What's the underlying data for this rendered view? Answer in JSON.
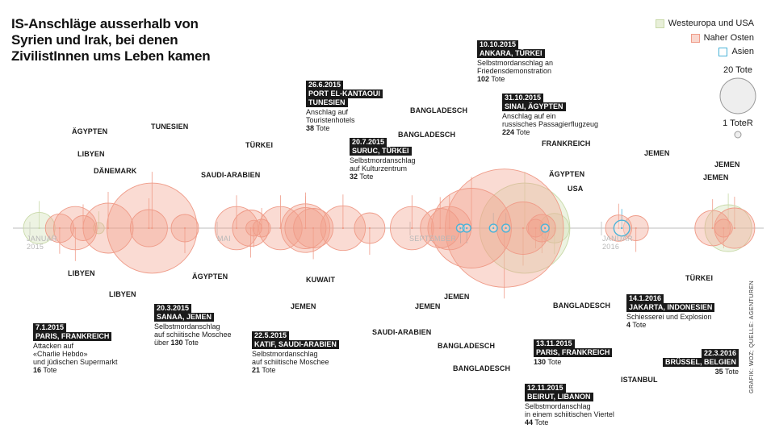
{
  "title_lines": [
    "IS-Anschläge ausserhalb von",
    "Syrien und Irak, bei denen",
    "ZivilistInnen ums Leben kamen"
  ],
  "legend": [
    {
      "label": "Westeuropa und USA",
      "color": "#c8d9a8",
      "fill": "#e8efd9"
    },
    {
      "label": "Naher Osten",
      "color": "#ef9b88",
      "fill": "#f9d7ce"
    },
    {
      "label": "Asien",
      "color": "#4ab3d8",
      "fill": "#ffffff"
    }
  ],
  "size_legend": {
    "big": "20 Tote",
    "small": "1 ToteR"
  },
  "axis_labels": {
    "jan2015": "JANUAR",
    "y2015": "2015",
    "mai": "MAI",
    "sep": "SEPTEMBER",
    "jan2016": "JANUAR",
    "y2016": "2016"
  },
  "countries": {
    "aegypten1": "ÄGYPTEN",
    "libyen1": "LIBYEN",
    "daenemark": "DÄNEMARK",
    "tunesien1": "TUNESIEN",
    "tuerkei1": "TÜRKEI",
    "saudi1": "SAUDI-ARABIEN",
    "bangladesch1": "BANGLADESCH",
    "bangladesch2": "BANGLADESCH",
    "frankreich1": "FRANKREICH",
    "aegypten2": "ÄGYPTEN",
    "usa": "USA",
    "jemen1": "JEMEN",
    "jemen2": "JEMEN",
    "jemen3": "JEMEN",
    "libyen2": "LIBYEN",
    "libyen3": "LIBYEN",
    "aegypten3": "ÄGYPTEN",
    "kuwait": "KUWAIT",
    "jemen4": "JEMEN",
    "saudi2": "SAUDI-ARABIEN",
    "jemen5": "JEMEN",
    "jemen6": "JEMEN",
    "bangladesch3": "BANGLADESCH",
    "bangladesch4": "BANGLADESCH",
    "bangladesch5": "BANGLADESCH",
    "istanbul": "ISTANBUL",
    "tuerkei2": "TÜRKEI"
  },
  "annotations": {
    "paris1": {
      "date": "7.1.2015",
      "place": "PARIS, FRANKREICH",
      "desc": [
        "Attacken auf",
        "«Charlie Hebdo»",
        "und jüdischen Supermarkt"
      ],
      "deaths": "16",
      "unit": "Tote"
    },
    "sanaa": {
      "date": "20.3.2015",
      "place": "SANAA, JEMEN",
      "desc": [
        "Selbstmordanschlag",
        "auf schiitische Moschee",
        "über"
      ],
      "deaths": "130",
      "unit": "Tote"
    },
    "katif": {
      "date": "22.5.2015",
      "place": "KATIF, SAUDI-ARABIEN",
      "desc": [
        "Selbstmordanschlag",
        "auf schiitische Moschee"
      ],
      "deaths": "21",
      "unit": "Tote"
    },
    "sousse": {
      "date": "26.6.2015",
      "place": "PORT EL-KANTAOUI",
      "place2": "TUNESIEN",
      "desc": [
        "Anschlag auf",
        "Touristenhotels"
      ],
      "deaths": "38",
      "unit": "Tote"
    },
    "suruc": {
      "date": "20.7.2015",
      "place": "SURUC, TÜRKEI",
      "desc": [
        "Selbstmordanschlag",
        "auf Kulturzentrum"
      ],
      "deaths": "32",
      "unit": "Tote"
    },
    "ankara": {
      "date": "10.10.2015",
      "place": "ANKARA, TÜRKEI",
      "desc": [
        "Selbstmordanschlag an",
        "Friedensdemonstration"
      ],
      "deaths": "102",
      "unit": "Tote"
    },
    "sinai": {
      "date": "31.10.2015",
      "place": "SINAI, ÄGYPTEN",
      "desc": [
        "Anschlag auf ein",
        "russisches Passagierflugzeug"
      ],
      "deaths": "224",
      "unit": "Tote"
    },
    "paris2": {
      "date": "13.11.2015",
      "place": "PARIS, FRANKREICH",
      "desc": [],
      "deaths": "130",
      "unit": "Tote"
    },
    "beirut": {
      "date": "12.11.2015",
      "place": "BEIRUT, LIBANON",
      "desc": [
        "Selbstmordanschlag",
        "in einem schiitischen Viertel"
      ],
      "deaths": "44",
      "unit": "Tote"
    },
    "jakarta": {
      "date": "14.1.2016",
      "place": "JAKARTA, INDONESIEN",
      "desc": [
        "Schiesserei und Explosion"
      ],
      "deaths": "4",
      "unit": "Tote"
    },
    "bruessel": {
      "date": "22.3.2016",
      "place": "BRÜSSEL, BELGIEN",
      "desc": [],
      "deaths": "35",
      "unit": "Tote"
    }
  },
  "credit": "GRAFIK: WOZ; QUELLE: AGENTUREN",
  "chart_data": {
    "type": "scatter",
    "x_unit": "date",
    "y_unit": "deaths",
    "x_range": [
      "2015-01-01",
      "2016-03-31"
    ],
    "colors": {
      "west": "#c8d9a8",
      "mideast": "#ef9b88",
      "asia": "#4ab3d8"
    },
    "points": [
      {
        "date": "2015-01-07",
        "country": "Frankreich",
        "deaths": 16,
        "region": "west"
      },
      {
        "date": "2015-01-20",
        "country": "Libyen",
        "deaths": 13,
        "region": "mideast"
      },
      {
        "date": "2015-01-30",
        "country": "Ägypten",
        "deaths": 30,
        "region": "mideast"
      },
      {
        "date": "2015-02-04",
        "country": "Libyen",
        "deaths": 10,
        "region": "mideast"
      },
      {
        "date": "2015-02-14",
        "country": "Dänemark",
        "deaths": 2,
        "region": "west"
      },
      {
        "date": "2015-02-20",
        "country": "Libyen",
        "deaths": 40,
        "region": "mideast"
      },
      {
        "date": "2015-03-18",
        "country": "Tunesien",
        "deaths": 22,
        "region": "mideast"
      },
      {
        "date": "2015-03-20",
        "country": "Jemen",
        "deaths": 130,
        "region": "mideast"
      },
      {
        "date": "2015-04-10",
        "country": "Ägypten",
        "deaths": 12,
        "region": "mideast"
      },
      {
        "date": "2015-05-13",
        "country": "Saudi-Arabien",
        "deaths": 30,
        "region": "mideast"
      },
      {
        "date": "2015-05-22",
        "country": "Saudi-Arabien",
        "deaths": 21,
        "region": "mideast"
      },
      {
        "date": "2015-05-24",
        "country": "Türkei",
        "deaths": 4,
        "region": "mideast"
      },
      {
        "date": "2015-05-29",
        "country": "Jemen",
        "deaths": 5,
        "region": "mideast"
      },
      {
        "date": "2015-06-10",
        "country": "Jemen",
        "deaths": 30,
        "region": "mideast"
      },
      {
        "date": "2015-06-26",
        "country": "Kuwait",
        "deaths": 27,
        "region": "mideast"
      },
      {
        "date": "2015-06-26",
        "country": "Tunesien",
        "deaths": 38,
        "region": "mideast"
      },
      {
        "date": "2015-07-01",
        "country": "Jemen",
        "deaths": 25,
        "region": "mideast"
      },
      {
        "date": "2015-07-20",
        "country": "Türkei",
        "deaths": 32,
        "region": "mideast"
      },
      {
        "date": "2015-08-06",
        "country": "Saudi-Arabien",
        "deaths": 15,
        "region": "mideast"
      },
      {
        "date": "2015-09-02",
        "country": "Jemen",
        "deaths": 30,
        "region": "mideast"
      },
      {
        "date": "2015-09-20",
        "country": "Jemen",
        "deaths": 25,
        "region": "mideast"
      },
      {
        "date": "2015-09-26",
        "country": "Jemen",
        "deaths": 30,
        "region": "mideast"
      },
      {
        "date": "2015-10-03",
        "country": "Bangladesch",
        "deaths": 1,
        "region": "asia"
      },
      {
        "date": "2015-10-07",
        "country": "Bangladesch",
        "deaths": 1,
        "region": "asia"
      },
      {
        "date": "2015-10-10",
        "country": "Türkei",
        "deaths": 102,
        "region": "mideast"
      },
      {
        "date": "2015-10-24",
        "country": "Bangladesch",
        "deaths": 1,
        "region": "asia"
      },
      {
        "date": "2015-10-31",
        "country": "Ägypten",
        "deaths": 224,
        "region": "mideast"
      },
      {
        "date": "2015-11-01",
        "country": "Bangladesch",
        "deaths": 1,
        "region": "asia"
      },
      {
        "date": "2015-11-12",
        "country": "Libanon",
        "deaths": 44,
        "region": "mideast"
      },
      {
        "date": "2015-11-13",
        "country": "Frankreich",
        "deaths": 130,
        "region": "west"
      },
      {
        "date": "2015-11-20",
        "country": "Ägypten",
        "deaths": 5,
        "region": "mideast"
      },
      {
        "date": "2015-11-24",
        "country": "Ägypten",
        "deaths": 12,
        "region": "mideast"
      },
      {
        "date": "2015-11-26",
        "country": "Bangladesch",
        "deaths": 1,
        "region": "asia"
      },
      {
        "date": "2015-12-02",
        "country": "USA",
        "deaths": 14,
        "region": "west"
      },
      {
        "date": "2016-01-12",
        "country": "Türkei",
        "deaths": 11,
        "region": "mideast"
      },
      {
        "date": "2016-01-14",
        "country": "Indonesien",
        "deaths": 4,
        "region": "asia"
      },
      {
        "date": "2016-01-23",
        "country": "Jemen",
        "deaths": 10,
        "region": "mideast"
      },
      {
        "date": "2016-03-12",
        "country": "Jemen",
        "deaths": 20,
        "region": "mideast"
      },
      {
        "date": "2016-03-19",
        "country": "Türkei",
        "deaths": 5,
        "region": "mideast"
      },
      {
        "date": "2016-03-22",
        "country": "Belgien",
        "deaths": 35,
        "region": "west"
      },
      {
        "date": "2016-03-26",
        "country": "Jemen",
        "deaths": 26,
        "region": "mideast"
      }
    ]
  }
}
